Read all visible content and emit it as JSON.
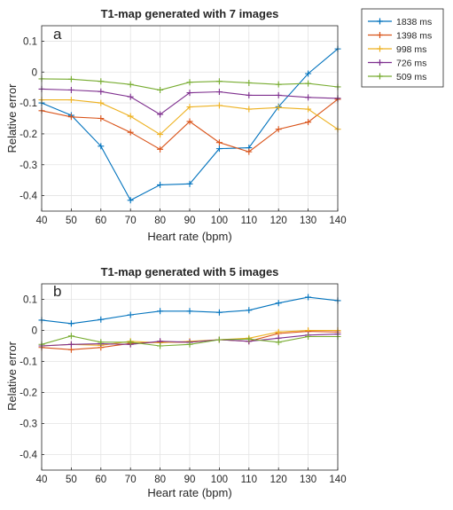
{
  "legend": {
    "placement": "outside-top-right",
    "entries": [
      {
        "label": "1838 ms",
        "color": "#0072BD"
      },
      {
        "label": "1398 ms",
        "color": "#D95319"
      },
      {
        "label": "998 ms",
        "color": "#EDB120"
      },
      {
        "label": "726 ms",
        "color": "#7E2F8E"
      },
      {
        "label": "509 ms",
        "color": "#77AC30"
      }
    ]
  },
  "chart_data": [
    {
      "type": "line",
      "panel_label": "a",
      "title": "T1-map generated with 7 images",
      "xlabel": "Heart rate (bpm)",
      "ylabel": "Relative error",
      "xlim": [
        40,
        140
      ],
      "ylim": [
        -0.45,
        0.15
      ],
      "grid": true,
      "marker": "+",
      "x": [
        40,
        50,
        60,
        70,
        80,
        90,
        100,
        110,
        120,
        130,
        140
      ],
      "xticks": [
        "40",
        "50",
        "60",
        "70",
        "80",
        "90",
        "100",
        "110",
        "120",
        "130",
        "140"
      ],
      "yticks": [
        {
          "v": -0.4,
          "label": "-0.4"
        },
        {
          "v": -0.3,
          "label": "-0.3"
        },
        {
          "v": -0.2,
          "label": "-0.2"
        },
        {
          "v": -0.1,
          "label": "-0.1"
        },
        {
          "v": 0,
          "label": "0"
        },
        {
          "v": 0.1,
          "label": "0.1"
        }
      ],
      "series": [
        {
          "name": "1838 ms",
          "color": "#0072BD",
          "values": [
            -0.1,
            -0.14,
            -0.24,
            -0.415,
            -0.365,
            -0.362,
            -0.248,
            -0.245,
            -0.112,
            -0.005,
            0.075
          ]
        },
        {
          "name": "1398 ms",
          "color": "#D95319",
          "values": [
            -0.125,
            -0.145,
            -0.15,
            -0.195,
            -0.25,
            -0.16,
            -0.228,
            -0.258,
            -0.185,
            -0.162,
            -0.088
          ]
        },
        {
          "name": "998 ms",
          "color": "#EDB120",
          "values": [
            -0.09,
            -0.09,
            -0.1,
            -0.143,
            -0.202,
            -0.113,
            -0.108,
            -0.12,
            -0.115,
            -0.12,
            -0.185
          ]
        },
        {
          "name": "726 ms",
          "color": "#7E2F8E",
          "values": [
            -0.055,
            -0.058,
            -0.063,
            -0.08,
            -0.137,
            -0.067,
            -0.064,
            -0.075,
            -0.075,
            -0.082,
            -0.085
          ]
        },
        {
          "name": "509 ms",
          "color": "#77AC30",
          "values": [
            -0.022,
            -0.023,
            -0.03,
            -0.04,
            -0.058,
            -0.033,
            -0.03,
            -0.035,
            -0.04,
            -0.037,
            -0.048
          ]
        }
      ]
    },
    {
      "type": "line",
      "panel_label": "b",
      "title": "T1-map generated with 5 images",
      "xlabel": "Heart rate (bpm)",
      "ylabel": "Relative error",
      "xlim": [
        40,
        140
      ],
      "ylim": [
        -0.45,
        0.15
      ],
      "grid": true,
      "marker": "+",
      "x": [
        40,
        50,
        60,
        70,
        80,
        90,
        100,
        110,
        120,
        130,
        140
      ],
      "xticks": [
        "40",
        "50",
        "60",
        "70",
        "80",
        "90",
        "100",
        "110",
        "120",
        "130",
        "140"
      ],
      "yticks": [
        {
          "v": -0.4,
          "label": "-0.4"
        },
        {
          "v": -0.3,
          "label": "-0.3"
        },
        {
          "v": -0.2,
          "label": "-0.2"
        },
        {
          "v": -0.1,
          "label": "-0.1"
        },
        {
          "v": 0,
          "label": "0"
        },
        {
          "v": 0.1,
          "label": "0.1"
        }
      ],
      "series": [
        {
          "name": "1838 ms",
          "color": "#0072BD",
          "values": [
            0.033,
            0.022,
            0.035,
            0.05,
            0.062,
            0.062,
            0.058,
            0.065,
            0.088,
            0.107,
            0.096
          ]
        },
        {
          "name": "1398 ms",
          "color": "#D95319",
          "values": [
            -0.055,
            -0.062,
            -0.055,
            -0.042,
            -0.038,
            -0.038,
            -0.03,
            -0.035,
            -0.01,
            -0.003,
            -0.005
          ]
        },
        {
          "name": "998 ms",
          "color": "#EDB120",
          "values": [
            -0.05,
            -0.045,
            -0.048,
            -0.035,
            -0.04,
            -0.035,
            -0.03,
            -0.025,
            -0.005,
            0.0,
            0.0
          ]
        },
        {
          "name": "726 ms",
          "color": "#7E2F8E",
          "values": [
            -0.05,
            -0.045,
            -0.043,
            -0.045,
            -0.035,
            -0.038,
            -0.03,
            -0.035,
            -0.025,
            -0.015,
            -0.012
          ]
        },
        {
          "name": "509 ms",
          "color": "#77AC30",
          "values": [
            -0.045,
            -0.018,
            -0.038,
            -0.038,
            -0.05,
            -0.045,
            -0.03,
            -0.028,
            -0.038,
            -0.02,
            -0.02
          ]
        }
      ]
    }
  ]
}
